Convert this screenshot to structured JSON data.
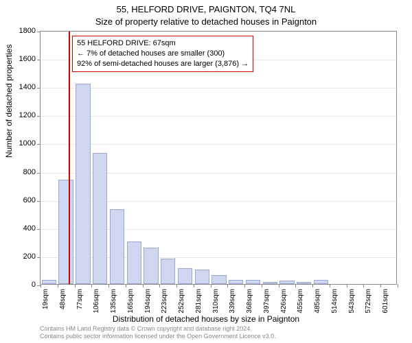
{
  "titles": {
    "line1": "55, HELFORD DRIVE, PAIGNTON, TQ4 7NL",
    "line2": "Size of property relative to detached houses in Paignton"
  },
  "chart": {
    "type": "histogram",
    "ylabel": "Number of detached properties",
    "xlabel": "Distribution of detached houses by size in Paignton",
    "background_color": "#ffffff",
    "grid_color": "#e9e9e9",
    "axis_color": "#888888",
    "bar_fill": "#cfd7f0",
    "bar_border": "#9aa8d6",
    "marker_color": "#d00000",
    "ylim": [
      0,
      1800
    ],
    "ytick_step": 200,
    "yticks": [
      0,
      200,
      400,
      600,
      800,
      1000,
      1200,
      1400,
      1600,
      1800
    ],
    "x_start": 19,
    "x_step": 29,
    "x_count": 21,
    "xticks": [
      "19sqm",
      "48sqm",
      "77sqm",
      "106sqm",
      "135sqm",
      "165sqm",
      "194sqm",
      "223sqm",
      "252sqm",
      "281sqm",
      "310sqm",
      "339sqm",
      "368sqm",
      "397sqm",
      "426sqm",
      "455sqm",
      "485sqm",
      "514sqm",
      "543sqm",
      "572sqm",
      "601sqm"
    ],
    "bars": [
      30,
      740,
      1420,
      930,
      530,
      300,
      260,
      180,
      110,
      100,
      65,
      30,
      30,
      15,
      25,
      15,
      30,
      0,
      0,
      0,
      0
    ],
    "marker": {
      "x_value": 67,
      "label": "55 HELFORD DRIVE: 67sqm"
    },
    "annotation": {
      "lines": [
        "55 HELFORD DRIVE: 67sqm",
        "← 7% of detached houses are smaller (300)",
        "92% of semi-detached houses are larger (3,876) →"
      ]
    }
  },
  "footer": {
    "line1": "Contains HM Land Registry data © Crown copyright and database right 2024.",
    "line2": "Contains public sector information licensed under the Open Government Licence v3.0."
  }
}
